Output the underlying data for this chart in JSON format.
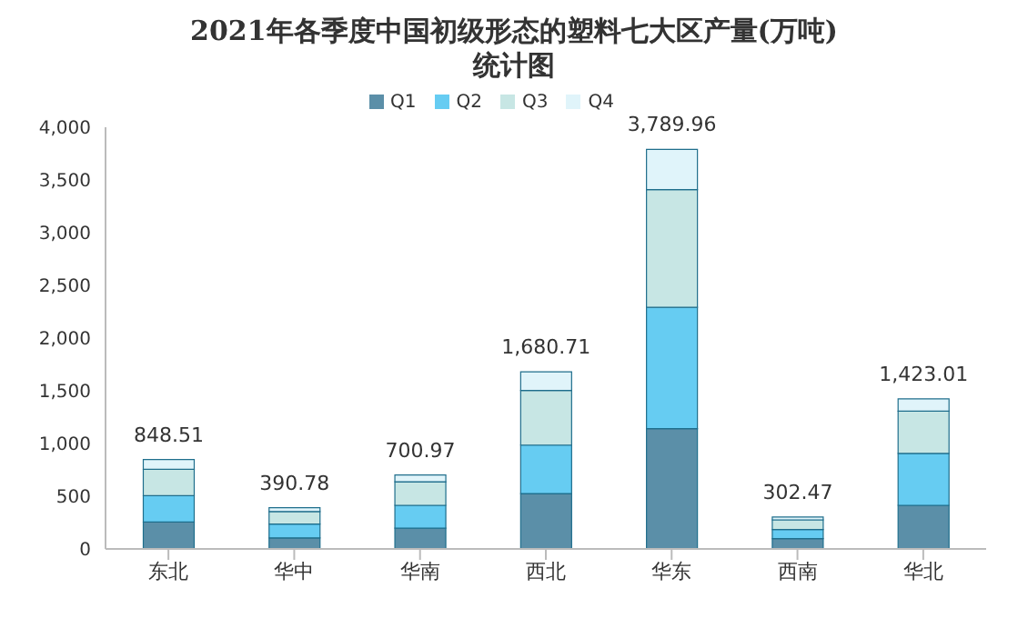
{
  "chart_data": {
    "type": "bar",
    "title": "2021年各季度中国初级形态的塑料七大区产量(万吨)统计图",
    "categories": [
      "东北",
      "华中",
      "华南",
      "西北",
      "华东",
      "西南",
      "华北"
    ],
    "stacked": true,
    "series": [
      {
        "name": "Q1",
        "color": "#5b8fa8",
        "values": [
          256,
          105,
          197,
          525,
          1142,
          98,
          414
        ]
      },
      {
        "name": "Q2",
        "color": "#66ccf2",
        "values": [
          250,
          131,
          217,
          460,
          1150,
          86,
          492
        ]
      },
      {
        "name": "Q3",
        "color": "#c7e6e4",
        "values": [
          249,
          119,
          223,
          519,
          1116,
          92,
          401
        ]
      },
      {
        "name": "Q4",
        "color": "#e0f4fa",
        "values": [
          93.51,
          35.78,
          63.97,
          176.71,
          381.96,
          26.47,
          116.01
        ]
      }
    ],
    "totals": [
      "848.51",
      "390.78",
      "700.97",
      "1,680.71",
      "3,789.96",
      "302.47",
      "1,423.01"
    ],
    "ylim": [
      0,
      4000
    ],
    "yticks": [
      0,
      500,
      {
        "value": 1000,
        "label": "1,000"
      },
      {
        "value": 1500,
        "label": "1,500"
      },
      {
        "value": 2000,
        "label": "2,000"
      },
      {
        "value": 2500,
        "label": "2,500"
      },
      {
        "value": 3000,
        "label": "3,000"
      },
      {
        "value": 3500,
        "label": "3,500"
      },
      {
        "value": 4000,
        "label": "4,000"
      }
    ],
    "grid": false,
    "legend": "top",
    "marker": "square"
  }
}
